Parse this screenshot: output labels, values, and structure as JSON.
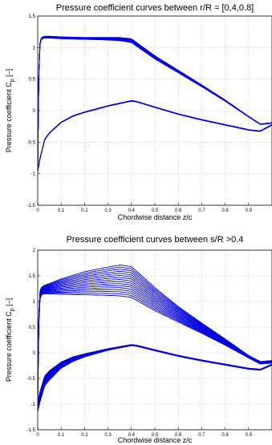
{
  "chart_data": [
    {
      "type": "line",
      "title": "Pressure coefficient curves between r/R = [0,4,0.8]",
      "xlabel": "Chordwise distance z/c",
      "ylabel": "Pressure coefficient C",
      "ylabel_subscript": "p",
      "ylabel_unit": " [–]",
      "xlim": [
        0,
        1
      ],
      "ylim": [
        -1.5,
        1.5
      ],
      "xticks": [
        0,
        0.1,
        0.2,
        0.3,
        0.4,
        0.5,
        0.6,
        0.7,
        0.8,
        0.9
      ],
      "yticks": [
        -1.5,
        -1,
        -0.5,
        0,
        0.5,
        1,
        1.5
      ],
      "grid": true,
      "color": "#0000ff",
      "n_curves": 9,
      "upper_surface": {
        "x": [
          0,
          0.005,
          0.01,
          0.015,
          0.02,
          0.03,
          0.05,
          0.1,
          0.2,
          0.3,
          0.35,
          0.4,
          0.5,
          0.6,
          0.7,
          0.8,
          0.9,
          0.95,
          1.0
        ],
        "y": [
          -0.95,
          0.6,
          1.05,
          1.12,
          1.14,
          1.15,
          1.15,
          1.14,
          1.13,
          1.12,
          1.11,
          1.08,
          0.82,
          0.6,
          0.38,
          0.15,
          -0.1,
          -0.22,
          -0.2
        ]
      },
      "upper_surface_spread": {
        "x": [
          0.1,
          0.2,
          0.3,
          0.4,
          0.5,
          0.6,
          0.7,
          0.8,
          0.9
        ],
        "y": [
          0.03,
          0.03,
          0.04,
          0.06,
          0.05,
          0.04,
          0.03,
          0.02,
          0.01
        ]
      },
      "lower_surface": {
        "x": [
          0,
          0.01,
          0.03,
          0.05,
          0.1,
          0.15,
          0.2,
          0.3,
          0.35,
          0.4,
          0.42,
          0.5,
          0.6,
          0.7,
          0.8,
          0.9,
          0.95,
          1.0
        ],
        "y": [
          -0.95,
          -0.75,
          -0.45,
          -0.35,
          -0.18,
          -0.08,
          -0.02,
          0.08,
          0.12,
          0.16,
          0.15,
          0.06,
          -0.05,
          -0.14,
          -0.22,
          -0.3,
          -0.32,
          -0.22
        ]
      },
      "lower_surface_spread": {
        "x": [
          0.1,
          0.2,
          0.3,
          0.4,
          0.6,
          0.8,
          0.9
        ],
        "y": [
          0.01,
          0.01,
          0.01,
          0.01,
          0.01,
          0.01,
          0.01
        ]
      }
    },
    {
      "type": "line",
      "title": "Pressure coefficient curves between s/R >0.4",
      "xlabel": "Chordwise distance z/c",
      "ylabel": "Pressure coefficient C",
      "ylabel_subscript": "p",
      "ylabel_unit": " [–]",
      "xlim": [
        0,
        1
      ],
      "ylim": [
        -1.5,
        2
      ],
      "xticks": [
        0,
        0.1,
        0.2,
        0.3,
        0.4,
        0.5,
        0.6,
        0.7,
        0.8,
        0.9
      ],
      "yticks": [
        -1.5,
        -1,
        -0.5,
        0,
        0.5,
        1,
        1.5,
        2
      ],
      "grid": true,
      "color": "#0000ff",
      "n_curves": 16,
      "upper_surface": {
        "x": [
          0,
          0.005,
          0.01,
          0.015,
          0.02,
          0.03,
          0.05,
          0.1,
          0.2,
          0.3,
          0.35,
          0.4,
          0.5,
          0.6,
          0.7,
          0.8,
          0.9,
          0.95,
          1.0
        ],
        "y": [
          -0.95,
          0.6,
          1.05,
          1.12,
          1.14,
          1.15,
          1.15,
          1.14,
          1.13,
          1.12,
          1.11,
          1.08,
          0.82,
          0.6,
          0.38,
          0.15,
          -0.1,
          -0.22,
          -0.2
        ]
      },
      "upper_surface_spread": {
        "x": [
          0.02,
          0.05,
          0.1,
          0.2,
          0.3,
          0.35,
          0.4,
          0.5,
          0.6,
          0.7,
          0.8,
          0.9
        ],
        "y": [
          0.15,
          0.2,
          0.3,
          0.45,
          0.55,
          0.6,
          0.6,
          0.45,
          0.3,
          0.2,
          0.12,
          0.05
        ]
      },
      "lower_surface": {
        "x": [
          0,
          0.01,
          0.03,
          0.05,
          0.1,
          0.15,
          0.2,
          0.3,
          0.35,
          0.4,
          0.42,
          0.5,
          0.6,
          0.7,
          0.8,
          0.9,
          0.95,
          1.0
        ],
        "y": [
          -0.95,
          -0.75,
          -0.45,
          -0.35,
          -0.18,
          -0.08,
          -0.02,
          0.08,
          0.12,
          0.16,
          0.15,
          0.06,
          -0.05,
          -0.14,
          -0.22,
          -0.3,
          -0.32,
          -0.22
        ]
      },
      "lower_surface_spread": {
        "x": [
          0.02,
          0.05,
          0.1,
          0.2,
          0.3,
          0.4,
          0.6,
          0.8,
          0.9
        ],
        "y": [
          0.2,
          0.18,
          0.12,
          0.06,
          0.03,
          0.02,
          0.02,
          0.02,
          0.02
        ]
      }
    }
  ]
}
